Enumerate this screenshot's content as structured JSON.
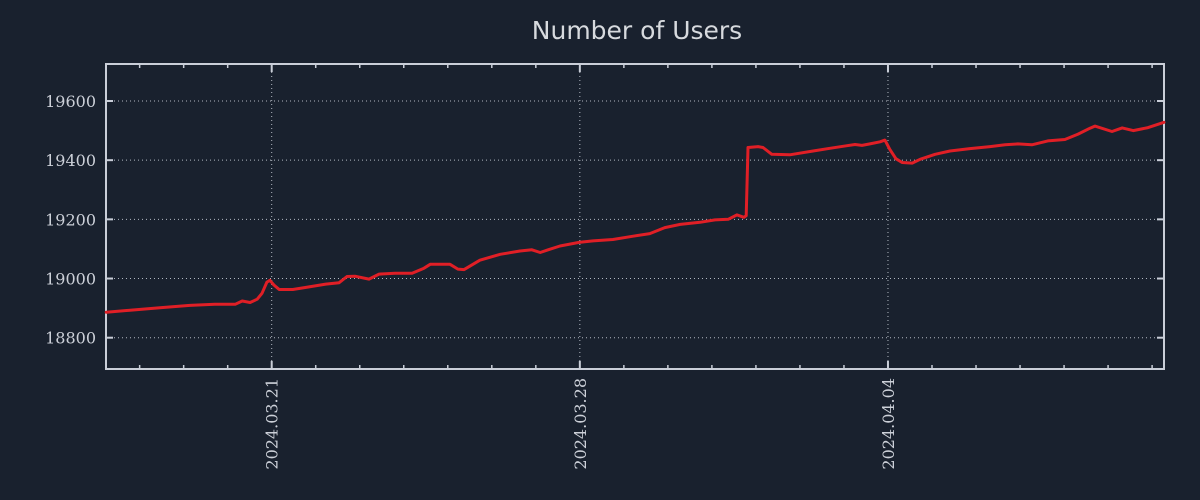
{
  "colors": {
    "background": "#19212e",
    "frame": "#c9ced8",
    "grid": "#c3c9d3",
    "tick_label": "#ccd0d8",
    "title": "#d7dade",
    "line": "#e01f26"
  },
  "chart_data": {
    "type": "line",
    "title": "Number of Users",
    "xlabel": "",
    "ylabel": "",
    "legend_position": "none",
    "grid": "dotted gridlines at major ticks, both axes",
    "x_unit": "days relative to 2024.03.21",
    "xlim": [
      -3.76,
      20.27
    ],
    "ylim": [
      18695,
      19727
    ],
    "y_ticks": [
      18800,
      19000,
      19200,
      19400,
      19600
    ],
    "x_ticks_major": [
      {
        "day": 0,
        "label": "2024.03.21"
      },
      {
        "day": 7,
        "label": "2024.03.28"
      },
      {
        "day": 14,
        "label": "2024.04.04"
      }
    ],
    "x_minor_tick_every_days": 1,
    "series": [
      {
        "name": "Number of Users",
        "color": "#e01f26",
        "points": [
          [
            -3.76,
            18886
          ],
          [
            -3.22,
            18893
          ],
          [
            -2.54,
            18901
          ],
          [
            -1.86,
            18909
          ],
          [
            -1.29,
            18913
          ],
          [
            -0.83,
            18913
          ],
          [
            -0.67,
            18924
          ],
          [
            -0.49,
            18919
          ],
          [
            -0.33,
            18930
          ],
          [
            -0.22,
            18950
          ],
          [
            -0.11,
            18988
          ],
          [
            -0.04,
            18994
          ],
          [
            0.05,
            18978
          ],
          [
            0.17,
            18963
          ],
          [
            0.48,
            18963
          ],
          [
            0.78,
            18970
          ],
          [
            1.23,
            18981
          ],
          [
            1.53,
            18986
          ],
          [
            1.71,
            19007
          ],
          [
            1.89,
            19008
          ],
          [
            2.21,
            18998
          ],
          [
            2.44,
            19015
          ],
          [
            2.8,
            19018
          ],
          [
            3.19,
            19018
          ],
          [
            3.46,
            19035
          ],
          [
            3.6,
            19048
          ],
          [
            4.05,
            19048
          ],
          [
            4.23,
            19032
          ],
          [
            4.37,
            19030
          ],
          [
            4.73,
            19062
          ],
          [
            5.19,
            19082
          ],
          [
            5.64,
            19093
          ],
          [
            5.91,
            19097
          ],
          [
            6.1,
            19088
          ],
          [
            6.28,
            19097
          ],
          [
            6.55,
            19110
          ],
          [
            6.98,
            19122
          ],
          [
            7.3,
            19127
          ],
          [
            7.75,
            19132
          ],
          [
            8.21,
            19143
          ],
          [
            8.59,
            19152
          ],
          [
            8.93,
            19172
          ],
          [
            9.28,
            19183
          ],
          [
            9.73,
            19190
          ],
          [
            10.07,
            19198
          ],
          [
            10.37,
            19200
          ],
          [
            10.57,
            19215
          ],
          [
            10.73,
            19207
          ],
          [
            10.78,
            19212
          ],
          [
            10.82,
            19443
          ],
          [
            11.05,
            19446
          ],
          [
            11.16,
            19443
          ],
          [
            11.36,
            19420
          ],
          [
            11.77,
            19418
          ],
          [
            12.3,
            19431
          ],
          [
            12.68,
            19440
          ],
          [
            13.07,
            19449
          ],
          [
            13.25,
            19453
          ],
          [
            13.41,
            19450
          ],
          [
            13.59,
            19455
          ],
          [
            13.82,
            19462
          ],
          [
            13.93,
            19468
          ],
          [
            14.04,
            19437
          ],
          [
            14.18,
            19405
          ],
          [
            14.32,
            19392
          ],
          [
            14.55,
            19390
          ],
          [
            14.73,
            19403
          ],
          [
            15.07,
            19420
          ],
          [
            15.41,
            19431
          ],
          [
            15.86,
            19439
          ],
          [
            16.32,
            19446
          ],
          [
            16.66,
            19452
          ],
          [
            16.95,
            19455
          ],
          [
            17.27,
            19452
          ],
          [
            17.63,
            19465
          ],
          [
            18.02,
            19470
          ],
          [
            18.32,
            19488
          ],
          [
            18.59,
            19508
          ],
          [
            18.7,
            19515
          ],
          [
            19.09,
            19497
          ],
          [
            19.32,
            19509
          ],
          [
            19.57,
            19500
          ],
          [
            19.91,
            19510
          ],
          [
            20.27,
            19528
          ]
        ]
      }
    ]
  }
}
